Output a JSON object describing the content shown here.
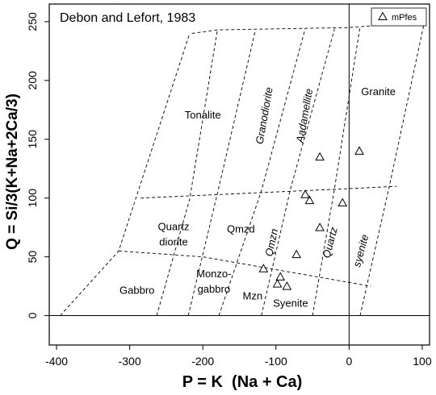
{
  "chart_data": {
    "type": "scatter",
    "title": "Debon and Lefort, 1983",
    "xlabel": "P = K  (Na + Ca)",
    "ylabel": "Q = Si/3(K+Na+2Ca/3)",
    "xlim": [
      -410,
      110
    ],
    "ylim": [
      -25,
      265
    ],
    "xticks": [
      -400,
      -300,
      -200,
      -100,
      0,
      100
    ],
    "yticks": [
      0,
      50,
      100,
      150,
      200,
      250
    ],
    "grid": false,
    "legend_position": "top-right",
    "reference_lines": {
      "x": 0,
      "y": 0
    },
    "series": [
      {
        "name": "mPfes",
        "marker": "triangle",
        "x": [
          -117,
          -98,
          -94,
          -85,
          -72,
          -40,
          -60,
          -54,
          -40,
          -9,
          14
        ],
        "y": [
          40,
          27,
          33,
          25,
          52,
          75,
          103,
          98,
          135,
          96,
          140
        ]
      }
    ],
    "field_boundaries": [
      {
        "x": [
          -215,
          -180,
          0,
          103
        ],
        "y": [
          240,
          243,
          245,
          250
        ]
      },
      {
        "x": [
          -395,
          -315,
          -218
        ],
        "y": [
          0,
          55,
          240
        ]
      },
      {
        "x": [
          -263,
          -218,
          -180
        ],
        "y": [
          0,
          99,
          243
        ]
      },
      {
        "x": [
          -220,
          -180,
          -128
        ],
        "y": [
          0,
          104,
          243
        ]
      },
      {
        "x": [
          -178,
          -120,
          -60
        ],
        "y": [
          0,
          106,
          244
        ]
      },
      {
        "x": [
          -120,
          -80,
          -20
        ],
        "y": [
          0,
          108,
          244
        ]
      },
      {
        "x": [
          -50,
          -20,
          15
        ],
        "y": [
          0,
          108,
          246
        ]
      },
      {
        "x": [
          15,
          55,
          103
        ],
        "y": [
          0,
          110,
          250
        ]
      },
      {
        "x": [
          -285,
          0,
          65
        ],
        "y": [
          100,
          108,
          110
        ]
      },
      {
        "x": [
          -315,
          -200,
          30
        ],
        "y": [
          55,
          50,
          25
        ]
      }
    ],
    "annotations": [
      {
        "text": "Tonalite",
        "x": -200,
        "y": 170,
        "rotation": 0
      },
      {
        "text": "Granodiorite",
        "x": -115,
        "y": 170,
        "rotation": -80
      },
      {
        "text": "Aadamellite",
        "x": -60,
        "y": 170,
        "rotation": -80
      },
      {
        "text": "Granite",
        "x": 40,
        "y": 190,
        "rotation": 0
      },
      {
        "text": "Quartz",
        "x": -240,
        "y": 75,
        "rotation": 0
      },
      {
        "text": "diorite",
        "x": -240,
        "y": 62,
        "rotation": 0
      },
      {
        "text": "Qmzd",
        "x": -148,
        "y": 73,
        "rotation": 0
      },
      {
        "text": "Qmzn",
        "x": -105,
        "y": 62,
        "rotation": -78
      },
      {
        "text": "Quartz",
        "x": -25,
        "y": 62,
        "rotation": -75
      },
      {
        "text": "syenite",
        "x": 17,
        "y": 55,
        "rotation": -75
      },
      {
        "text": "Monzo-",
        "x": -185,
        "y": 35,
        "rotation": 0
      },
      {
        "text": "gabbro",
        "x": -185,
        "y": 22,
        "rotation": 0
      },
      {
        "text": "Gabbro",
        "x": -290,
        "y": 21,
        "rotation": 0
      },
      {
        "text": "Mzn",
        "x": -132,
        "y": 16,
        "rotation": 0
      },
      {
        "text": "Syenite",
        "x": -80,
        "y": 10,
        "rotation": 0
      }
    ]
  }
}
